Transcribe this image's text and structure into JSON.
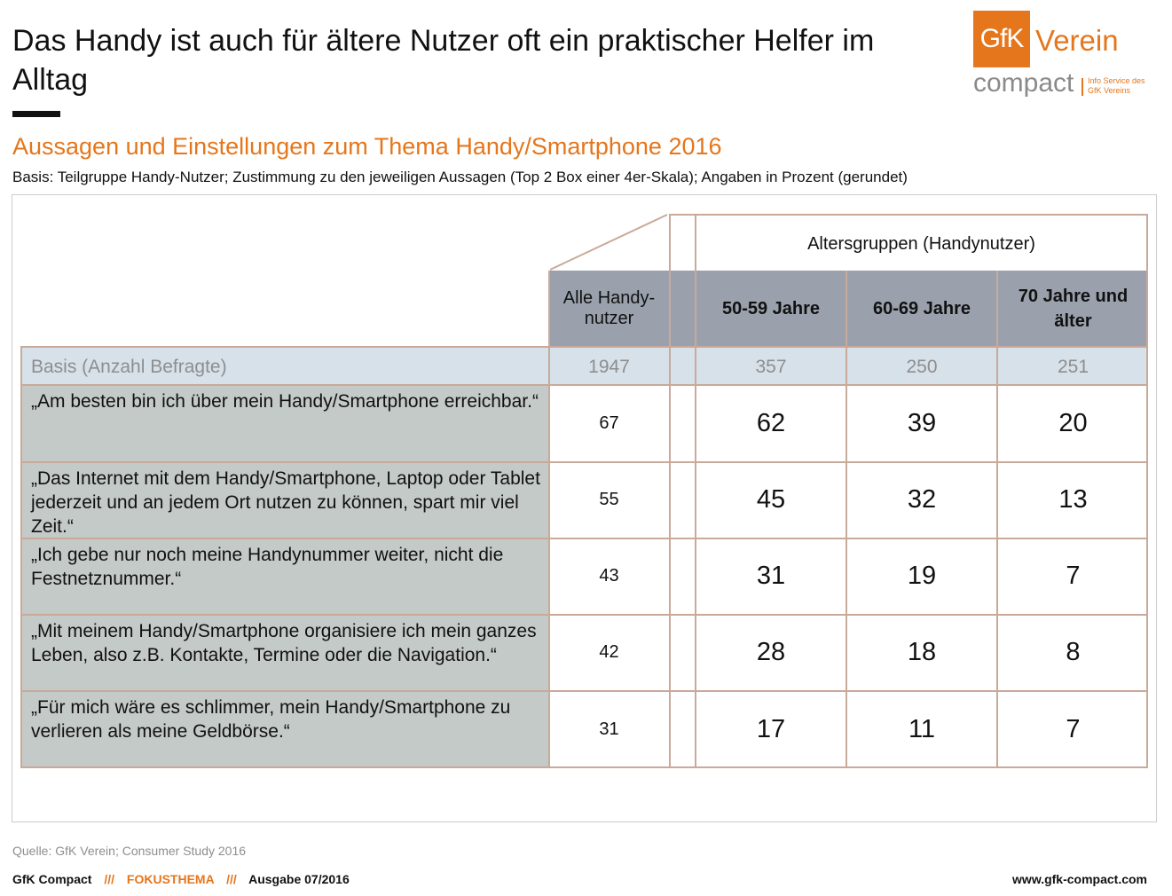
{
  "title": "Das Handy ist auch für ältere Nutzer oft ein praktischer Helfer im Alltag",
  "logo": {
    "box": "GfK",
    "word": "Verein",
    "compact": "compact",
    "info": "Info Service des GfK Vereins"
  },
  "subtitle": "Aussagen und Einstellungen zum Thema Handy/Smartphone 2016",
  "basis_note": "Basis: Teilgruppe Handy-Nutzer; Zustimmung zu den jeweiligen Aussagen (Top 2 Box einer 4er-Skala); Angaben in Prozent (gerundet)",
  "chart_data": {
    "type": "table",
    "group_header": "Altersgruppen (Handynutzer)",
    "col_all": "Alle Handy-nutzer",
    "columns": [
      "50-59 Jahre",
      "60-69 Jahre",
      "70 Jahre und älter"
    ],
    "basis_label": "Basis (Anzahl Befragte)",
    "basis_all": "1947",
    "basis": [
      "357",
      "250",
      "251"
    ],
    "rows": [
      {
        "label": "„Am besten bin ich über mein Handy/Smartphone erreichbar.“",
        "all": "67",
        "values": [
          "62",
          "39",
          "20"
        ]
      },
      {
        "label": "„Das Internet mit dem Handy/Smartphone, Laptop oder Tablet jederzeit und an jedem Ort nutzen zu können, spart mir viel Zeit.“",
        "all": "55",
        "values": [
          "45",
          "32",
          "13"
        ]
      },
      {
        "label": "„Ich gebe nur noch meine Handynummer weiter, nicht die Festnetznummer.“",
        "all": "43",
        "values": [
          "31",
          "19",
          "7"
        ]
      },
      {
        "label": "„Mit meinem Handy/Smartphone organisiere ich mein ganzes Leben, also z.B. Kontakte, Termine oder die Navigation.“",
        "all": "42",
        "values": [
          "28",
          "18",
          "8"
        ]
      },
      {
        "label": "„Für mich wäre es schlimmer, mein Handy/Smartphone zu verlieren als meine Geldbörse.“",
        "all": "31",
        "values": [
          "17",
          "11",
          "7"
        ]
      }
    ]
  },
  "source": "Quelle: GfK Verein; Consumer Study 2016",
  "footer": {
    "brand": "GfK Compact",
    "sep": "///",
    "topic": "FOKUSTHEMA",
    "issue": "Ausgabe 07/2016",
    "url": "www.gfk-compact.com"
  },
  "colors": {
    "accent": "#e5761c",
    "header_fill": "#9aa1ad",
    "basis_fill": "#d7e1ea",
    "statement_fill": "#c4cac8",
    "grid": "#c9a999"
  }
}
